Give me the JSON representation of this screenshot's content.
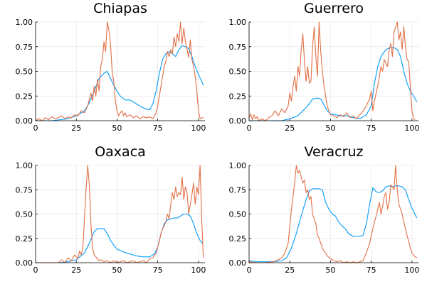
{
  "chart_data": [
    {
      "type": "line",
      "title": "Chiapas",
      "xlim": [
        0,
        104
      ],
      "ylim": [
        0,
        1.0
      ],
      "xticks": [
        0,
        25,
        50,
        75,
        100
      ],
      "yticks": [
        0.0,
        0.25,
        0.5,
        0.75,
        1.0
      ],
      "ytick_labels": [
        "0.00",
        "0.25",
        "0.50",
        "0.75",
        "1.00"
      ],
      "grid": true,
      "colors": [
        "#009AFA",
        "#E26F46"
      ],
      "series": [
        {
          "x": [
            0,
            5,
            10,
            15,
            20,
            25,
            30,
            33,
            36,
            39,
            42,
            44,
            46,
            48,
            50,
            52,
            55,
            58,
            62,
            66,
            70,
            72,
            74,
            76,
            78,
            80,
            82,
            84,
            86,
            88,
            90,
            92,
            94,
            96,
            98,
            100,
            103
          ],
          "y": [
            0,
            0,
            0,
            0.01,
            0.02,
            0.05,
            0.1,
            0.18,
            0.3,
            0.43,
            0.48,
            0.5,
            0.43,
            0.36,
            0.3,
            0.25,
            0.21,
            0.21,
            0.17,
            0.13,
            0.11,
            0.17,
            0.3,
            0.48,
            0.62,
            0.68,
            0.7,
            0.68,
            0.65,
            0.72,
            0.76,
            0.75,
            0.73,
            0.65,
            0.55,
            0.47,
            0.36
          ]
        },
        {
          "x": [
            0,
            2,
            4,
            6,
            8,
            10,
            12,
            14,
            16,
            18,
            20,
            22,
            24,
            26,
            28,
            30,
            32,
            34,
            35,
            36,
            37,
            38,
            39,
            40,
            41,
            42,
            43,
            44,
            45,
            46,
            47,
            48,
            49,
            50,
            51,
            52,
            53,
            54,
            55,
            56,
            58,
            60,
            62,
            64,
            66,
            68,
            70,
            72,
            74,
            75,
            76,
            77,
            78,
            79,
            80,
            81,
            82,
            83,
            84,
            85,
            86,
            87,
            88,
            89,
            90,
            91,
            92,
            93,
            94,
            95,
            96,
            97,
            98,
            99,
            100,
            101,
            102,
            103
          ],
          "y": [
            0,
            0.02,
            0,
            0.03,
            0.01,
            0.04,
            0.02,
            0.03,
            0.05,
            0.02,
            0.04,
            0.03,
            0.06,
            0.05,
            0.1,
            0.08,
            0.15,
            0.28,
            0.2,
            0.35,
            0.25,
            0.42,
            0.3,
            0.55,
            0.62,
            0.8,
            0.7,
            1.0,
            0.92,
            0.78,
            0.5,
            0.4,
            0.2,
            0.1,
            0.05,
            0.08,
            0.1,
            0.05,
            0.08,
            0.04,
            0.06,
            0.03,
            0.05,
            0.02,
            0.04,
            0.03,
            0.04,
            0.02,
            0.08,
            0.15,
            0.25,
            0.35,
            0.45,
            0.55,
            0.6,
            0.7,
            0.65,
            0.72,
            0.68,
            0.85,
            0.75,
            0.88,
            0.8,
            1.0,
            0.78,
            0.94,
            0.8,
            0.72,
            0.64,
            0.82,
            0.62,
            0.55,
            0.45,
            0.3,
            0.1,
            0.02,
            0.03,
            0.03
          ]
        }
      ]
    },
    {
      "type": "line",
      "title": "Guerrero",
      "xlim": [
        0,
        104
      ],
      "ylim": [
        0,
        1.0
      ],
      "xticks": [
        0,
        25,
        50,
        75,
        100
      ],
      "yticks": [
        0.0,
        0.25,
        0.5,
        0.75,
        1.0
      ],
      "ytick_labels": [
        "0.00",
        "0.25",
        "0.50",
        "0.75",
        "1.00"
      ],
      "grid": true,
      "colors": [
        "#009AFA",
        "#E26F46"
      ],
      "series": [
        {
          "x": [
            0,
            5,
            10,
            15,
            20,
            25,
            30,
            33,
            36,
            39,
            42,
            44,
            46,
            48,
            50,
            53,
            56,
            60,
            64,
            68,
            72,
            75,
            77,
            79,
            81,
            83,
            85,
            87,
            89,
            91,
            93,
            95,
            97,
            99,
            101,
            103
          ],
          "y": [
            0,
            0,
            0,
            0,
            0,
            0.02,
            0.05,
            0.1,
            0.15,
            0.22,
            0.23,
            0.22,
            0.16,
            0.1,
            0.07,
            0.06,
            0.05,
            0.05,
            0.03,
            0.02,
            0.06,
            0.15,
            0.38,
            0.55,
            0.65,
            0.7,
            0.73,
            0.74,
            0.74,
            0.72,
            0.65,
            0.5,
            0.38,
            0.3,
            0.25,
            0.19
          ]
        },
        {
          "x": [
            0,
            1,
            2,
            3,
            4,
            5,
            6,
            8,
            10,
            12,
            14,
            16,
            18,
            20,
            22,
            24,
            25,
            26,
            27,
            28,
            29,
            30,
            31,
            32,
            33,
            34,
            35,
            36,
            37,
            38,
            39,
            40,
            41,
            42,
            43,
            44,
            45,
            46,
            47,
            48,
            49,
            50,
            52,
            54,
            56,
            58,
            60,
            62,
            64,
            66,
            68,
            70,
            72,
            74,
            75,
            76,
            77,
            78,
            79,
            80,
            81,
            82,
            83,
            84,
            85,
            86,
            87,
            88,
            89,
            90,
            91,
            92,
            93,
            94,
            95,
            96,
            97,
            98,
            99,
            100,
            101,
            102
          ],
          "y": [
            0.03,
            0.07,
            0.01,
            0.06,
            0.02,
            0.04,
            0,
            0.02,
            0,
            0.03,
            0.05,
            0.1,
            0.05,
            0.12,
            0.08,
            0.15,
            0.28,
            0.2,
            0.35,
            0.45,
            0.3,
            0.55,
            0.45,
            0.72,
            0.88,
            0.6,
            0.4,
            0.55,
            0.38,
            0.4,
            0.75,
            0.95,
            0.65,
            0.45,
            1.0,
            0.7,
            0.5,
            0.35,
            0.25,
            0.15,
            0.1,
            0.06,
            0.05,
            0.03,
            0.06,
            0.04,
            0.08,
            0.03,
            0.05,
            0.02,
            0.06,
            0.1,
            0.15,
            0.22,
            0.3,
            0.1,
            0.2,
            0.28,
            0.35,
            0.45,
            0.55,
            0.5,
            0.62,
            0.58,
            0.55,
            0.72,
            0.78,
            0.65,
            0.9,
            0.95,
            1.0,
            0.82,
            0.9,
            0.72,
            0.95,
            0.75,
            0.62,
            0.6,
            0.35,
            0.1,
            0.02,
            0.01
          ]
        }
      ]
    },
    {
      "type": "line",
      "title": "Oaxaca",
      "xlim": [
        0,
        104
      ],
      "ylim": [
        0,
        1.0
      ],
      "xticks": [
        0,
        25,
        50,
        75,
        100
      ],
      "yticks": [
        0.0,
        0.25,
        0.5,
        0.75,
        1.0
      ],
      "ytick_labels": [
        "0.00",
        "0.25",
        "0.50",
        "0.75",
        "1.00"
      ],
      "grid": true,
      "colors": [
        "#009AFA",
        "#E26F46"
      ],
      "series": [
        {
          "x": [
            0,
            5,
            10,
            15,
            20,
            25,
            30,
            33,
            36,
            38,
            40,
            42,
            44,
            46,
            48,
            50,
            54,
            58,
            62,
            66,
            70,
            73,
            75,
            77,
            79,
            81,
            83,
            85,
            87,
            89,
            91,
            93,
            95,
            97,
            99,
            101,
            103
          ],
          "y": [
            0,
            0,
            0,
            0,
            0.01,
            0.03,
            0.1,
            0.2,
            0.32,
            0.35,
            0.35,
            0.35,
            0.3,
            0.23,
            0.18,
            0.14,
            0.11,
            0.09,
            0.07,
            0.06,
            0.06,
            0.09,
            0.16,
            0.3,
            0.4,
            0.44,
            0.45,
            0.46,
            0.46,
            0.48,
            0.5,
            0.5,
            0.48,
            0.4,
            0.3,
            0.23,
            0.19
          ]
        },
        {
          "x": [
            0,
            5,
            10,
            14,
            16,
            18,
            20,
            22,
            24,
            26,
            27,
            28,
            29,
            30,
            31,
            32,
            33,
            34,
            35,
            36,
            37,
            38,
            39,
            40,
            42,
            44,
            46,
            48,
            50,
            52,
            54,
            56,
            58,
            60,
            62,
            64,
            66,
            68,
            70,
            72,
            74,
            75,
            76,
            77,
            78,
            79,
            80,
            81,
            82,
            83,
            84,
            85,
            86,
            87,
            88,
            89,
            90,
            91,
            92,
            93,
            94,
            95,
            96,
            97,
            98,
            99,
            100,
            101,
            102,
            103
          ],
          "y": [
            0,
            0,
            0,
            0,
            0.03,
            0,
            0.05,
            0.02,
            0.08,
            0.04,
            0.12,
            0.08,
            0.15,
            0.45,
            0.75,
            1.0,
            0.8,
            0.4,
            0.15,
            0.08,
            0.06,
            0.04,
            0.02,
            0.03,
            0.01,
            0.02,
            0,
            0.02,
            0,
            0.01,
            0.02,
            0,
            0.01,
            0.02,
            0,
            0.01,
            0.02,
            0,
            0.04,
            0.05,
            0.1,
            0.16,
            0.22,
            0.3,
            0.35,
            0.38,
            0.42,
            0.5,
            0.45,
            0.6,
            0.72,
            0.65,
            0.78,
            0.68,
            0.72,
            0.7,
            0.88,
            0.65,
            0.78,
            0.72,
            0.5,
            0.6,
            0.7,
            0.82,
            0.6,
            0.78,
            0.7,
            1.0,
            0.45,
            0.05
          ]
        }
      ]
    },
    {
      "type": "line",
      "title": "Veracruz",
      "xlim": [
        0,
        104
      ],
      "ylim": [
        0,
        1.0
      ],
      "xticks": [
        0,
        25,
        50,
        75,
        100
      ],
      "yticks": [
        0.0,
        0.25,
        0.5,
        0.75,
        1.0
      ],
      "ytick_labels": [
        "0.00",
        "0.25",
        "0.50",
        "0.75",
        "1.00"
      ],
      "grid": true,
      "colors": [
        "#009AFA",
        "#E26F46"
      ],
      "series": [
        {
          "x": [
            0,
            5,
            10,
            15,
            20,
            23,
            26,
            29,
            32,
            35,
            37,
            39,
            41,
            43,
            45,
            47,
            49,
            51,
            53,
            55,
            57,
            59,
            61,
            64,
            67,
            70,
            72,
            74,
            76,
            78,
            80,
            82,
            84,
            86,
            88,
            90,
            92,
            94,
            96,
            98,
            100,
            103
          ],
          "y": [
            0.02,
            0.01,
            0.01,
            0.01,
            0.02,
            0.05,
            0.15,
            0.3,
            0.48,
            0.65,
            0.74,
            0.76,
            0.76,
            0.76,
            0.75,
            0.62,
            0.55,
            0.5,
            0.48,
            0.42,
            0.38,
            0.35,
            0.3,
            0.27,
            0.27,
            0.28,
            0.4,
            0.6,
            0.77,
            0.73,
            0.72,
            0.74,
            0.78,
            0.79,
            0.78,
            0.79,
            0.79,
            0.78,
            0.75,
            0.65,
            0.56,
            0.46
          ]
        },
        {
          "x": [
            0,
            5,
            10,
            15,
            18,
            20,
            22,
            24,
            25,
            26,
            27,
            28,
            29,
            30,
            31,
            32,
            33,
            34,
            35,
            36,
            37,
            38,
            39,
            40,
            41,
            42,
            43,
            44,
            45,
            46,
            47,
            48,
            50,
            52,
            54,
            56,
            58,
            60,
            62,
            64,
            66,
            68,
            70,
            72,
            74,
            75,
            76,
            77,
            78,
            79,
            80,
            81,
            82,
            83,
            84,
            85,
            86,
            87,
            88,
            89,
            90,
            91,
            92,
            93,
            94,
            95,
            96,
            97,
            98,
            99,
            100,
            101,
            102,
            103
          ],
          "y": [
            0.01,
            0,
            0,
            0.01,
            0.03,
            0.05,
            0.1,
            0.2,
            0.38,
            0.55,
            0.68,
            0.82,
            1.0,
            0.92,
            0.95,
            0.88,
            0.82,
            0.85,
            0.72,
            0.75,
            0.65,
            0.68,
            0.5,
            0.45,
            0.4,
            0.28,
            0.25,
            0.2,
            0.15,
            0.12,
            0.1,
            0.07,
            0.04,
            0.02,
            0.01,
            0.02,
            0,
            0.01,
            0,
            0.01,
            0,
            0.01,
            0.02,
            0.1,
            0.2,
            0.28,
            0.35,
            0.42,
            0.48,
            0.55,
            0.62,
            0.5,
            0.58,
            0.68,
            0.72,
            0.55,
            0.62,
            0.8,
            0.78,
            0.75,
            1.0,
            0.75,
            0.6,
            0.55,
            0.5,
            0.42,
            0.35,
            0.28,
            0.22,
            0.15,
            0.1,
            0.08,
            0.06,
            0.05
          ]
        }
      ]
    }
  ]
}
